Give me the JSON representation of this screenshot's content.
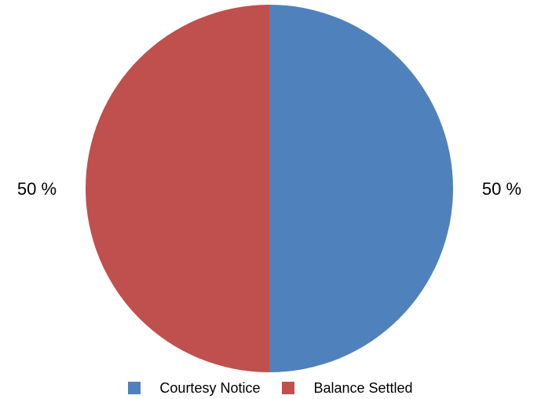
{
  "chart_data": {
    "type": "pie",
    "title": "",
    "slices": [
      {
        "name": "Courtesy Notice",
        "value": 50,
        "label": "50 %",
        "color": "#4F81BD"
      },
      {
        "name": "Balance Settled",
        "value": 50,
        "label": "50 %",
        "color": "#C0504D"
      }
    ],
    "start_angle_deg": 0,
    "direction": "clockwise",
    "legend": {
      "position": "bottom",
      "entries": [
        "Courtesy Notice",
        "Balance Settled"
      ]
    }
  }
}
